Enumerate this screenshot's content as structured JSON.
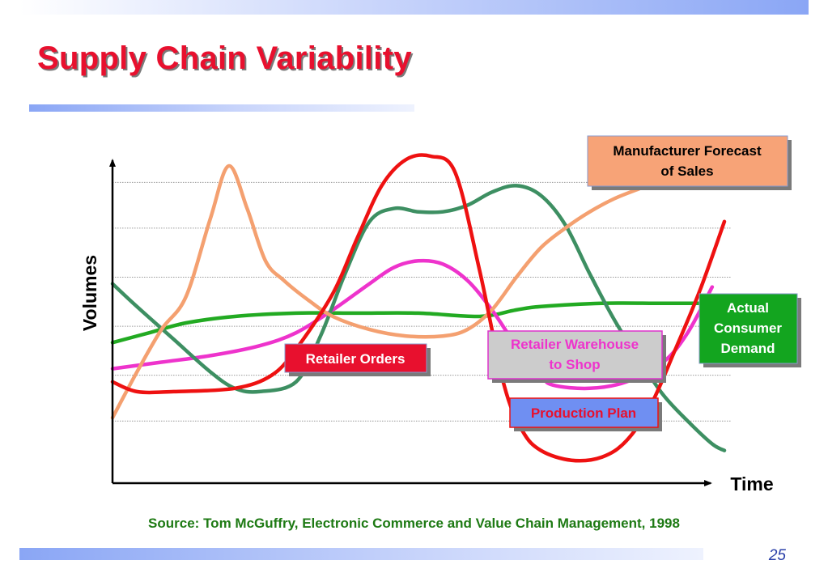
{
  "slide": {
    "title": "Supply Chain Variability",
    "source": "Source: Tom McGuffry, Electronic Commerce and Value Chain Management, 1998",
    "page_number": "25"
  },
  "colors": {
    "title": "#e8102e",
    "source_text": "#1e7a14",
    "retailer_orders": "#ee1111",
    "manufacturer_forecast": "#f4a070",
    "actual_consumer_demand": "#22aa22",
    "retailer_warehouse": "#ee33cc",
    "production_plan": "#3d8f62"
  },
  "chart_data": {
    "type": "line",
    "xlabel": "Time",
    "ylabel": "Volumes",
    "xlim": [
      0,
      100
    ],
    "ylim": [
      0,
      100
    ],
    "grid": true,
    "gridlines_y": [
      19,
      33,
      48,
      63,
      78,
      92
    ],
    "series": [
      {
        "name": "Retailer Orders",
        "color": "#ee1111",
        "x": [
          0,
          4,
          10,
          20,
          26,
          30,
          36,
          40,
          44,
          48,
          52,
          56,
          60,
          64,
          67,
          70,
          75,
          80,
          84,
          88,
          92,
          96,
          100
        ],
        "y": [
          31,
          28,
          28,
          29,
          33,
          41,
          58,
          75,
          91,
          99,
          100,
          95,
          65,
          30,
          16,
          10,
          7,
          8,
          13,
          24,
          41,
          59,
          80
        ]
      },
      {
        "name": "Manufacturer Forecast of Sales",
        "color": "#f4a070",
        "x": [
          0,
          4,
          8,
          12,
          16,
          19,
          22,
          25,
          28,
          32,
          36,
          42,
          48,
          54,
          58,
          62,
          66,
          70,
          74,
          78,
          82,
          86,
          90
        ],
        "y": [
          20,
          34,
          47,
          57,
          81,
          97,
          84,
          68,
          62,
          56,
          51,
          47,
          45,
          45,
          47,
          53,
          63,
          72,
          78,
          83,
          87,
          90,
          93
        ]
      },
      {
        "name": "Actual Consumer Demand",
        "color": "#22aa22",
        "x": [
          0,
          6,
          12,
          20,
          30,
          40,
          50,
          60,
          66,
          70,
          80,
          90,
          100
        ],
        "y": [
          43,
          46,
          49,
          51,
          52,
          52,
          52,
          51,
          53,
          54,
          55,
          55,
          55
        ]
      },
      {
        "name": "Retailer Warehouse to Shop",
        "color": "#ee33cc",
        "x": [
          0,
          8,
          16,
          24,
          30,
          36,
          42,
          46,
          50,
          54,
          58,
          62,
          66,
          70,
          72,
          78,
          84,
          90,
          94,
          98
        ],
        "y": [
          35,
          37,
          39,
          42,
          46,
          53,
          61,
          66,
          68,
          67,
          62,
          53,
          42,
          33,
          30,
          29,
          31,
          37,
          46,
          60
        ]
      },
      {
        "name": "Production Plan",
        "color": "#3d8f62",
        "x": [
          0,
          4,
          10,
          16,
          20,
          24,
          30,
          34,
          38,
          42,
          46,
          50,
          54,
          58,
          62,
          66,
          70,
          74,
          78,
          82,
          86,
          90,
          94,
          98,
          100
        ],
        "y": [
          61,
          54,
          44,
          34,
          29,
          28,
          31,
          45,
          64,
          80,
          84,
          83,
          83,
          85,
          89,
          91,
          88,
          79,
          64,
          50,
          38,
          27,
          19,
          12,
          10
        ]
      }
    ]
  },
  "labels": {
    "manufacturer_forecast": "Manufacturer Forecast of Sales",
    "actual_consumer_demand": "Actual Consumer Demand",
    "retailer_orders": "Retailer Orders",
    "retailer_warehouse": "Retailer Warehouse to Shop",
    "production_plan": "Production Plan"
  }
}
